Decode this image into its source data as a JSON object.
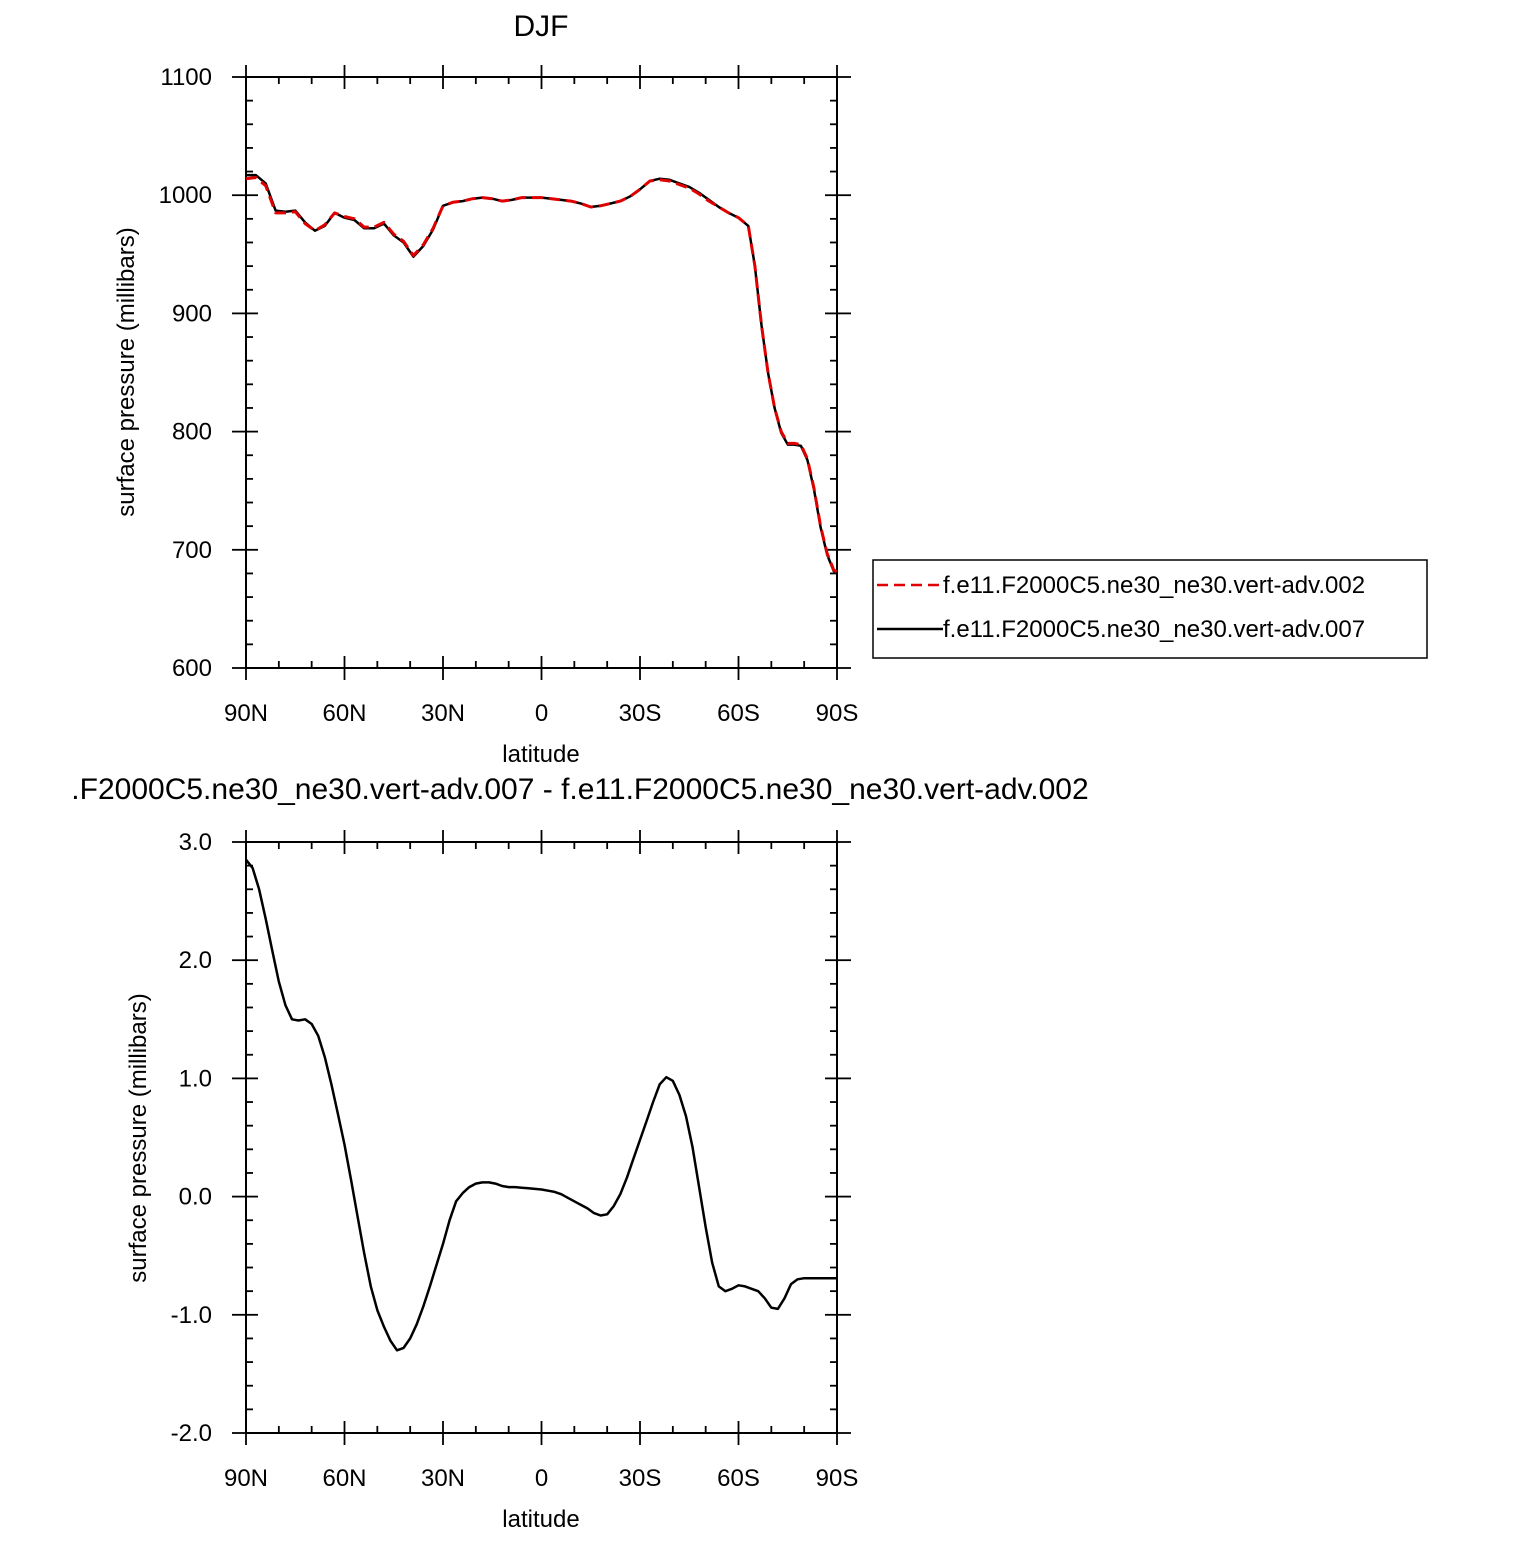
{
  "chart_data": [
    {
      "type": "line",
      "title": "DJF",
      "xlabel": "latitude",
      "ylabel": "surface pressure (millibars)",
      "xlim": [
        90,
        -90
      ],
      "ylim": [
        600,
        1100
      ],
      "xticks": [
        {
          "value": 90,
          "label": "90N"
        },
        {
          "value": 60,
          "label": "60N"
        },
        {
          "value": 30,
          "label": "30N"
        },
        {
          "value": 0,
          "label": "0"
        },
        {
          "value": -30,
          "label": "30S"
        },
        {
          "value": -60,
          "label": "60S"
        },
        {
          "value": -90,
          "label": "90S"
        }
      ],
      "yticks": [
        {
          "value": 600,
          "label": "600"
        },
        {
          "value": 700,
          "label": "700"
        },
        {
          "value": 800,
          "label": "800"
        },
        {
          "value": 900,
          "label": "900"
        },
        {
          "value": 1000,
          "label": "1000"
        },
        {
          "value": 1100,
          "label": "1100"
        }
      ],
      "legend_position": "right-bottom",
      "series": [
        {
          "name": "f.e11.F2000C5.ne30_ne30.vert-adv.002",
          "color": "#e00000",
          "dash": "dashed",
          "x": [
            90,
            87,
            84,
            81,
            78,
            75,
            72,
            69,
            66,
            63,
            60,
            57,
            54,
            51,
            48,
            45,
            42,
            39,
            36,
            33,
            30,
            27,
            24,
            21,
            18,
            15,
            12,
            9,
            6,
            3,
            0,
            -3,
            -6,
            -9,
            -12,
            -15,
            -18,
            -21,
            -24,
            -27,
            -30,
            -33,
            -36,
            -39,
            -42,
            -45,
            -48,
            -51,
            -54,
            -57,
            -60,
            -63,
            -65,
            -67,
            -69,
            -71,
            -73,
            -75,
            -77,
            -79,
            -81,
            -83,
            -85,
            -87,
            -89,
            -90
          ],
          "y": [
            1014,
            1015,
            1008,
            985,
            985,
            986,
            976,
            970,
            975,
            985,
            982,
            980,
            973,
            973,
            977,
            967,
            961,
            949,
            958,
            972,
            991,
            994,
            995,
            997,
            998,
            997,
            995,
            996,
            998,
            998,
            998,
            997,
            996,
            995,
            993,
            990,
            991,
            993,
            995,
            999,
            1005,
            1012,
            1013,
            1012,
            1009,
            1006,
            1001,
            995,
            990,
            985,
            981,
            974,
            940,
            890,
            850,
            820,
            800,
            790,
            790,
            789,
            777,
            752,
            720,
            697,
            683,
            681
          ]
        },
        {
          "name": "f.e11.F2000C5.ne30_ne30.vert-adv.007",
          "color": "#000000",
          "dash": "solid",
          "x": [
            90,
            87,
            84,
            81,
            78,
            75,
            72,
            69,
            66,
            63,
            60,
            57,
            54,
            51,
            48,
            45,
            42,
            39,
            36,
            33,
            30,
            27,
            24,
            21,
            18,
            15,
            12,
            9,
            6,
            3,
            0,
            -3,
            -6,
            -9,
            -12,
            -15,
            -18,
            -21,
            -24,
            -27,
            -30,
            -33,
            -36,
            -39,
            -42,
            -45,
            -48,
            -51,
            -54,
            -57,
            -60,
            -63,
            -65,
            -67,
            -69,
            -71,
            -73,
            -75,
            -77,
            -79,
            -81,
            -83,
            -85,
            -87,
            -89,
            -90
          ],
          "y": [
            1017,
            1017,
            1010,
            987,
            986,
            987,
            977,
            970,
            974,
            985,
            981,
            979,
            972,
            972,
            976,
            966,
            960,
            948,
            957,
            971,
            991,
            994,
            995,
            997,
            998,
            997,
            995,
            996,
            998,
            998,
            998,
            997,
            996,
            995,
            993,
            990,
            991,
            993,
            995,
            999,
            1005,
            1012,
            1014,
            1013,
            1010,
            1007,
            1002,
            996,
            990,
            985,
            981,
            974,
            940,
            890,
            850,
            820,
            799,
            789,
            789,
            788,
            776,
            751,
            719,
            696,
            682,
            680
          ]
        }
      ]
    },
    {
      "type": "line",
      "title": ".F2000C5.ne30_ne30.vert-adv.007 - f.e11.F2000C5.ne30_ne30.vert-adv.002",
      "xlabel": "latitude",
      "ylabel": "surface pressure (millibars)",
      "xlim": [
        90,
        -90
      ],
      "ylim": [
        -2.0,
        3.0
      ],
      "xticks": [
        {
          "value": 90,
          "label": "90N"
        },
        {
          "value": 60,
          "label": "60N"
        },
        {
          "value": 30,
          "label": "30N"
        },
        {
          "value": 0,
          "label": "0"
        },
        {
          "value": -30,
          "label": "30S"
        },
        {
          "value": -60,
          "label": "60S"
        },
        {
          "value": -90,
          "label": "90S"
        }
      ],
      "yticks": [
        {
          "value": -2.0,
          "label": "-2.0"
        },
        {
          "value": -1.0,
          "label": "-1.0"
        },
        {
          "value": 0.0,
          "label": "0.0"
        },
        {
          "value": 1.0,
          "label": "1.0"
        },
        {
          "value": 2.0,
          "label": "2.0"
        },
        {
          "value": 3.0,
          "label": "3.0"
        }
      ],
      "series": [
        {
          "color": "#000000",
          "dash": "solid",
          "x": [
            90,
            88,
            86,
            84,
            82,
            80,
            78,
            76,
            74,
            72,
            70,
            68,
            66,
            64,
            62,
            60,
            58,
            56,
            54,
            52,
            50,
            48,
            46,
            44,
            42,
            40,
            38,
            36,
            34,
            32,
            30,
            28,
            26,
            24,
            22,
            20,
            18,
            16,
            14,
            12,
            10,
            8,
            6,
            4,
            2,
            0,
            -2,
            -4,
            -6,
            -8,
            -10,
            -12,
            -14,
            -16,
            -18,
            -20,
            -22,
            -24,
            -26,
            -28,
            -30,
            -32,
            -34,
            -36,
            -38,
            -40,
            -42,
            -44,
            -46,
            -48,
            -50,
            -52,
            -54,
            -56,
            -58,
            -60,
            -62,
            -64,
            -66,
            -68,
            -70,
            -72,
            -74,
            -76,
            -78,
            -80,
            -82,
            -84,
            -86,
            -88,
            -90
          ],
          "y": [
            2.85,
            2.78,
            2.6,
            2.35,
            2.08,
            1.82,
            1.62,
            1.5,
            1.49,
            1.5,
            1.46,
            1.36,
            1.18,
            0.95,
            0.7,
            0.44,
            0.14,
            -0.17,
            -0.48,
            -0.76,
            -0.96,
            -1.1,
            -1.22,
            -1.3,
            -1.28,
            -1.2,
            -1.08,
            -0.93,
            -0.76,
            -0.58,
            -0.4,
            -0.2,
            -0.04,
            0.03,
            0.08,
            0.11,
            0.12,
            0.12,
            0.11,
            0.09,
            0.08,
            0.08,
            0.075,
            0.07,
            0.065,
            0.06,
            0.05,
            0.04,
            0.02,
            -0.01,
            -0.04,
            -0.07,
            -0.1,
            -0.14,
            -0.16,
            -0.15,
            -0.08,
            0.02,
            0.16,
            0.32,
            0.48,
            0.64,
            0.8,
            0.95,
            1.01,
            0.98,
            0.86,
            0.68,
            0.42,
            0.08,
            -0.26,
            -0.56,
            -0.76,
            -0.8,
            -0.78,
            -0.75,
            -0.76,
            -0.78,
            -0.8,
            -0.86,
            -0.94,
            -0.95,
            -0.86,
            -0.74,
            -0.7,
            -0.69,
            -0.69,
            -0.69,
            -0.69,
            -0.69,
            -0.69
          ]
        }
      ]
    }
  ]
}
